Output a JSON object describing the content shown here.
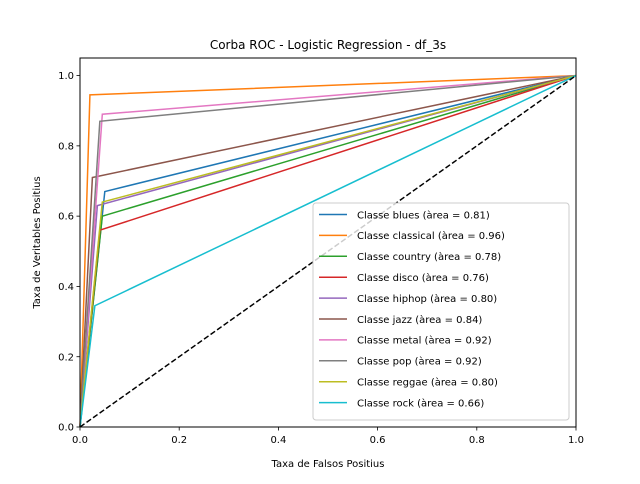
{
  "chart_data": {
    "type": "line",
    "title": "Corba ROC - Logistic Regression - df_3s",
    "xlabel": "Taxa de Falsos Positius",
    "ylabel": "Taxa de Veritables Positius",
    "xlim": [
      0,
      1
    ],
    "ylim": [
      0,
      1.05
    ],
    "xticks": [
      "0.0",
      "0.2",
      "0.4",
      "0.6",
      "0.8",
      "1.0"
    ],
    "yticks": [
      "0.0",
      "0.2",
      "0.4",
      "0.6",
      "0.8",
      "1.0"
    ],
    "legend_position": "lower-right",
    "diagonal": {
      "x": [
        0,
        1
      ],
      "y": [
        0,
        1
      ],
      "color": "#000000",
      "style": "dashed"
    },
    "series": [
      {
        "name": "Classe blues (àrea = 0.81)",
        "color": "#1f77b4",
        "x": [
          0,
          0.05,
          1
        ],
        "y": [
          0,
          0.67,
          1
        ]
      },
      {
        "name": "Classe classical (àrea = 0.96)",
        "color": "#ff7f0e",
        "x": [
          0,
          0.02,
          1
        ],
        "y": [
          0,
          0.945,
          1
        ]
      },
      {
        "name": "Classe country (àrea = 0.78)",
        "color": "#2ca02c",
        "x": [
          0,
          0.045,
          1
        ],
        "y": [
          0,
          0.6,
          1
        ]
      },
      {
        "name": "Classe disco (àrea = 0.76)",
        "color": "#d62728",
        "x": [
          0,
          0.04,
          1
        ],
        "y": [
          0,
          0.56,
          1
        ]
      },
      {
        "name": "Classe hiphop (àrea = 0.80)",
        "color": "#9467bd",
        "x": [
          0,
          0.035,
          1
        ],
        "y": [
          0,
          0.63,
          1
        ]
      },
      {
        "name": "Classe jazz (àrea = 0.84)",
        "color": "#8c564b",
        "x": [
          0,
          0.025,
          1
        ],
        "y": [
          0,
          0.71,
          1
        ]
      },
      {
        "name": "Classe metal (àrea = 0.92)",
        "color": "#e377c2",
        "x": [
          0,
          0.045,
          1
        ],
        "y": [
          0,
          0.89,
          1
        ]
      },
      {
        "name": "Classe pop (àrea = 0.92)",
        "color": "#7f7f7f",
        "x": [
          0,
          0.04,
          1
        ],
        "y": [
          0,
          0.87,
          1
        ]
      },
      {
        "name": "Classe reggae (àrea = 0.80)",
        "color": "#bcbd22",
        "x": [
          0,
          0.045,
          1
        ],
        "y": [
          0,
          0.64,
          1
        ]
      },
      {
        "name": "Classe rock (àrea = 0.66)",
        "color": "#17becf",
        "x": [
          0,
          0.03,
          1
        ],
        "y": [
          0,
          0.345,
          1
        ]
      }
    ]
  }
}
